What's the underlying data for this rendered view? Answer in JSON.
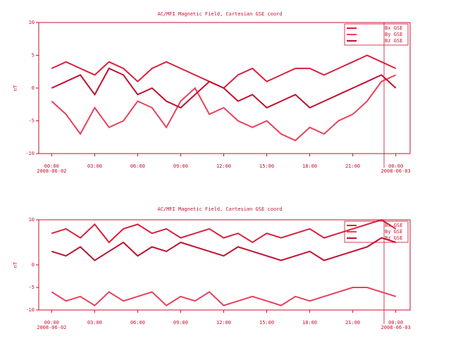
{
  "chart_data": [
    {
      "type": "line",
      "title": "AC/MFI  Magnetic Field, Cartesian GSE coord",
      "ylabel": "nT",
      "x": [
        0,
        1,
        2,
        3,
        4,
        5,
        6,
        7,
        8,
        9,
        10,
        11,
        12,
        13,
        14,
        15,
        16,
        17,
        18,
        19,
        20,
        21,
        22,
        23,
        24
      ],
      "xlim": [
        -0.9,
        25
      ],
      "ylim": [
        -10,
        10
      ],
      "xticks": [
        {
          "value": 0,
          "label": "00:00"
        },
        {
          "value": 3,
          "label": "03:00"
        },
        {
          "value": 6,
          "label": "06:00"
        },
        {
          "value": 9,
          "label": "09:00"
        },
        {
          "value": 12,
          "label": "12:00"
        },
        {
          "value": 15,
          "label": "15:00"
        },
        {
          "value": 18,
          "label": "18:00"
        },
        {
          "value": 21,
          "label": "21:00"
        },
        {
          "value": 24,
          "label": "00:00"
        }
      ],
      "yticks": [
        10,
        5,
        0,
        -5,
        -10
      ],
      "date_labels": [
        "2008-06-02",
        "2008-06-03"
      ],
      "series": [
        {
          "name": "Bx GSE",
          "color": "#d8203a",
          "values": [
            3,
            4,
            3,
            2,
            4,
            3,
            1,
            3,
            4,
            3,
            2,
            1,
            0,
            2,
            3,
            1,
            2,
            3,
            3,
            2,
            3,
            4,
            5,
            4,
            3
          ]
        },
        {
          "name": "By GSE",
          "color": "#e8405a",
          "values": [
            -2,
            -4,
            -7,
            -3,
            -6,
            -5,
            -2,
            -3,
            -6,
            -2,
            0,
            -4,
            -3,
            -5,
            -6,
            -5,
            -7,
            -8,
            -6,
            -7,
            -5,
            -4,
            -2,
            1,
            2
          ]
        },
        {
          "name": "Bz GSE",
          "color": "#c01030",
          "values": [
            0,
            1,
            2,
            -1,
            3,
            2,
            -1,
            0,
            -2,
            -3,
            -1,
            1,
            0,
            -2,
            -1,
            -3,
            -2,
            -1,
            -3,
            -2,
            -1,
            0,
            1,
            2,
            0
          ]
        }
      ]
    },
    {
      "type": "line",
      "title": "AC/MFI  Magnetic Field, Cartesian GSE coord",
      "ylabel": "nT",
      "x": [
        0,
        1,
        2,
        3,
        4,
        5,
        6,
        7,
        8,
        9,
        10,
        11,
        12,
        13,
        14,
        15,
        16,
        17,
        18,
        19,
        20,
        21,
        22,
        23,
        24
      ],
      "xlim": [
        -0.9,
        25
      ],
      "ylim": [
        -10,
        10
      ],
      "xticks": [
        {
          "value": 0,
          "label": "00:00"
        },
        {
          "value": 3,
          "label": "03:00"
        },
        {
          "value": 6,
          "label": "06:00"
        },
        {
          "value": 9,
          "label": "09:00"
        },
        {
          "value": 12,
          "label": "12:00"
        },
        {
          "value": 15,
          "label": "15:00"
        },
        {
          "value": 18,
          "label": "18:00"
        },
        {
          "value": 21,
          "label": "21:00"
        },
        {
          "value": 24,
          "label": "00:00"
        }
      ],
      "yticks": [
        10,
        0,
        -5,
        -10
      ],
      "date_labels": [
        "2008-06-02",
        "2008-06-03"
      ],
      "series": [
        {
          "name": "Bx GSE",
          "color": "#d8203a",
          "values": [
            7,
            8,
            6,
            9,
            5,
            8,
            9,
            7,
            8,
            6,
            7,
            8,
            6,
            7,
            5,
            7,
            6,
            7,
            8,
            6,
            7,
            8,
            9,
            10,
            8
          ]
        },
        {
          "name": "By GSE",
          "color": "#e8405a",
          "values": [
            -6,
            -8,
            -7,
            -9,
            -6,
            -8,
            -7,
            -6,
            -9,
            -7,
            -8,
            -6,
            -9,
            -8,
            -7,
            -8,
            -9,
            -7,
            -8,
            -7,
            -6,
            -5,
            -5,
            -6,
            -7
          ]
        },
        {
          "name": "Bz GSE",
          "color": "#c01030",
          "values": [
            3,
            2,
            4,
            1,
            3,
            5,
            2,
            4,
            3,
            5,
            4,
            3,
            2,
            4,
            3,
            2,
            1,
            2,
            3,
            1,
            2,
            3,
            4,
            6,
            5
          ]
        }
      ]
    }
  ]
}
